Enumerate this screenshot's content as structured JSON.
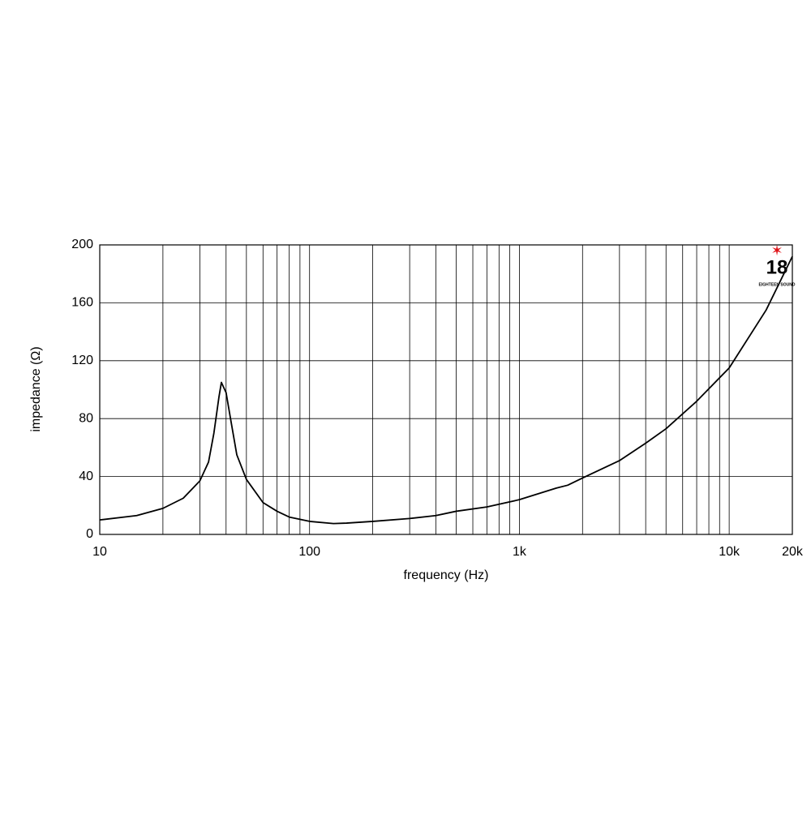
{
  "chart_data": {
    "type": "line",
    "x_label": "frequency (Hz)",
    "y_label": "impedance (Ω)",
    "x_scale": "log",
    "x": [
      10,
      15,
      20,
      25,
      30,
      33,
      35,
      37,
      38,
      40,
      42,
      45,
      50,
      60,
      70,
      80,
      100,
      130,
      150,
      200,
      300,
      400,
      500,
      700,
      1000,
      1500,
      1700,
      2000,
      3000,
      4000,
      5000,
      7000,
      10000,
      15000,
      20000
    ],
    "series": [
      {
        "color": "#000000",
        "values": [
          10,
          13,
          18,
          25,
          37,
          50,
          70,
          95,
          105,
          98,
          80,
          55,
          38,
          22,
          16,
          12,
          9,
          7.5,
          7.8,
          9,
          11,
          13,
          16,
          19,
          24,
          32,
          34,
          39,
          51,
          63,
          73,
          92,
          115,
          155,
          192
        ]
      }
    ],
    "xlim": [
      10,
      20000
    ],
    "xticks": [
      10,
      100,
      {
        "value": 1000,
        "label": "1k"
      },
      {
        "value": 10000,
        "label": "10k"
      },
      {
        "value": 20000,
        "label": "20k"
      }
    ],
    "x_minor_ticks": [
      20,
      30,
      40,
      50,
      60,
      70,
      80,
      90,
      200,
      300,
      400,
      500,
      600,
      700,
      800,
      900,
      2000,
      3000,
      4000,
      5000,
      6000,
      7000,
      8000,
      9000
    ],
    "ylim": [
      0,
      200
    ],
    "yticks": [
      0,
      40,
      80,
      120,
      160,
      200
    ],
    "grid": true,
    "logo": {
      "number": "18",
      "brand": "EIGHTEEN SOUND"
    }
  }
}
